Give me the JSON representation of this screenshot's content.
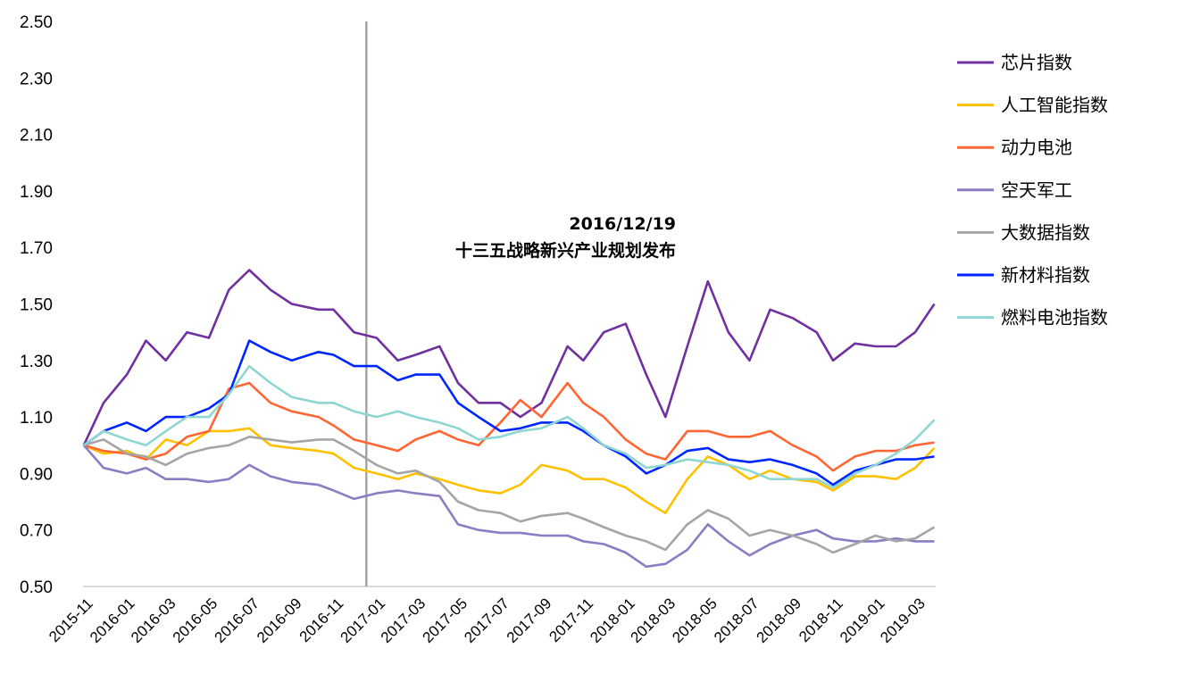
{
  "chart_data": {
    "type": "line",
    "title": "",
    "xlabel": "",
    "ylabel": "",
    "ylim": [
      0.5,
      2.5
    ],
    "y_ticks": [
      "0.50",
      "0.70",
      "0.90",
      "1.10",
      "1.30",
      "1.50",
      "1.70",
      "1.90",
      "2.10",
      "2.30",
      "2.50"
    ],
    "x_range": [
      "2015-11-01",
      "2019-03-31"
    ],
    "x_ticks": [
      "2015-11",
      "2016-01",
      "2016-03",
      "2016-05",
      "2016-07",
      "2016-09",
      "2016-11",
      "2017-01",
      "2017-03",
      "2017-05",
      "2017-07",
      "2017-09",
      "2017-11",
      "2018-01",
      "2018-03",
      "2018-05",
      "2018-07",
      "2018-09",
      "2018-11",
      "2019-01",
      "2019-03"
    ],
    "grid": false,
    "legend_position": "right",
    "annotation": {
      "date": "2016-12-19",
      "line_color": "#a6a6a6",
      "label_date": "2016/12/19",
      "label_text": "十三五战略新兴产业规划发布"
    },
    "x": [
      "2015-11-02",
      "2015-12-01",
      "2016-01-04",
      "2016-02-01",
      "2016-03-01",
      "2016-04-01",
      "2016-05-03",
      "2016-06-01",
      "2016-07-01",
      "2016-08-01",
      "2016-09-01",
      "2016-10-10",
      "2016-11-01",
      "2016-12-01",
      "2017-01-03",
      "2017-02-03",
      "2017-03-01",
      "2017-04-05",
      "2017-05-02",
      "2017-06-01",
      "2017-07-03",
      "2017-08-01",
      "2017-09-01",
      "2017-10-09",
      "2017-11-01",
      "2017-12-01",
      "2018-01-02",
      "2018-02-01",
      "2018-03-01",
      "2018-04-02",
      "2018-05-02",
      "2018-06-01",
      "2018-07-02",
      "2018-08-01",
      "2018-09-03",
      "2018-10-08",
      "2018-11-01",
      "2018-12-03",
      "2019-01-02",
      "2019-02-01",
      "2019-03-01",
      "2019-03-29"
    ],
    "series": [
      {
        "name": "芯片指数",
        "color": "#7030a0",
        "values": [
          1.0,
          1.15,
          1.25,
          1.37,
          1.3,
          1.4,
          1.38,
          1.55,
          1.62,
          1.55,
          1.5,
          1.48,
          1.48,
          1.4,
          1.38,
          1.3,
          1.32,
          1.35,
          1.22,
          1.15,
          1.15,
          1.1,
          1.15,
          1.35,
          1.3,
          1.4,
          1.43,
          1.25,
          1.1,
          1.35,
          1.58,
          1.4,
          1.3,
          1.48,
          1.45,
          1.4,
          1.3,
          1.36,
          1.35,
          1.35,
          1.4,
          1.5
        ]
      },
      {
        "name": "人工智能指数",
        "color": "#ffc000",
        "values": [
          1.0,
          0.97,
          0.98,
          0.95,
          1.02,
          1.0,
          1.05,
          1.05,
          1.06,
          1.0,
          0.99,
          0.98,
          0.97,
          0.92,
          0.9,
          0.88,
          0.9,
          0.88,
          0.86,
          0.84,
          0.83,
          0.86,
          0.93,
          0.91,
          0.88,
          0.88,
          0.85,
          0.8,
          0.76,
          0.88,
          0.96,
          0.93,
          0.88,
          0.91,
          0.88,
          0.87,
          0.84,
          0.89,
          0.89,
          0.88,
          0.92,
          0.99
        ]
      },
      {
        "name": "动力电池",
        "color": "#ff6633",
        "values": [
          1.0,
          0.98,
          0.97,
          0.95,
          0.97,
          1.03,
          1.05,
          1.2,
          1.22,
          1.15,
          1.12,
          1.1,
          1.07,
          1.02,
          1.0,
          0.98,
          1.02,
          1.05,
          1.02,
          1.0,
          1.08,
          1.16,
          1.1,
          1.22,
          1.15,
          1.1,
          1.02,
          0.97,
          0.95,
          1.05,
          1.05,
          1.03,
          1.03,
          1.05,
          1.0,
          0.96,
          0.91,
          0.96,
          0.98,
          0.98,
          1.0,
          1.01
        ]
      },
      {
        "name": "空天军工",
        "color": "#8e7cc3",
        "values": [
          1.0,
          0.92,
          0.9,
          0.92,
          0.88,
          0.88,
          0.87,
          0.88,
          0.93,
          0.89,
          0.87,
          0.86,
          0.84,
          0.81,
          0.83,
          0.84,
          0.83,
          0.82,
          0.72,
          0.7,
          0.69,
          0.69,
          0.68,
          0.68,
          0.66,
          0.65,
          0.62,
          0.57,
          0.58,
          0.63,
          0.72,
          0.66,
          0.61,
          0.65,
          0.68,
          0.7,
          0.67,
          0.66,
          0.66,
          0.67,
          0.66,
          0.66
        ]
      },
      {
        "name": "大数据指数",
        "color": "#a5a5a5",
        "values": [
          1.0,
          1.02,
          0.97,
          0.96,
          0.93,
          0.97,
          0.99,
          1.0,
          1.03,
          1.02,
          1.01,
          1.02,
          1.02,
          0.98,
          0.93,
          0.9,
          0.91,
          0.87,
          0.8,
          0.77,
          0.76,
          0.73,
          0.75,
          0.76,
          0.74,
          0.71,
          0.68,
          0.66,
          0.63,
          0.72,
          0.77,
          0.74,
          0.68,
          0.7,
          0.68,
          0.65,
          0.62,
          0.65,
          0.68,
          0.66,
          0.67,
          0.71
        ]
      },
      {
        "name": "新材料指数",
        "color": "#0026ff",
        "values": [
          1.0,
          1.05,
          1.08,
          1.05,
          1.1,
          1.1,
          1.13,
          1.18,
          1.37,
          1.33,
          1.3,
          1.33,
          1.32,
          1.28,
          1.28,
          1.23,
          1.25,
          1.25,
          1.15,
          1.1,
          1.05,
          1.06,
          1.08,
          1.08,
          1.05,
          1.0,
          0.96,
          0.9,
          0.93,
          0.98,
          0.99,
          0.95,
          0.94,
          0.95,
          0.93,
          0.9,
          0.86,
          0.91,
          0.93,
          0.95,
          0.95,
          0.96
        ]
      },
      {
        "name": "燃料电池指数",
        "color": "#8fd6d2",
        "values": [
          1.0,
          1.05,
          1.02,
          1.0,
          1.05,
          1.1,
          1.1,
          1.18,
          1.28,
          1.22,
          1.17,
          1.15,
          1.15,
          1.12,
          1.1,
          1.12,
          1.1,
          1.08,
          1.06,
          1.02,
          1.03,
          1.05,
          1.06,
          1.1,
          1.06,
          1.0,
          0.97,
          0.92,
          0.93,
          0.95,
          0.94,
          0.93,
          0.91,
          0.88,
          0.88,
          0.88,
          0.85,
          0.9,
          0.93,
          0.97,
          1.02,
          1.09
        ]
      }
    ]
  }
}
